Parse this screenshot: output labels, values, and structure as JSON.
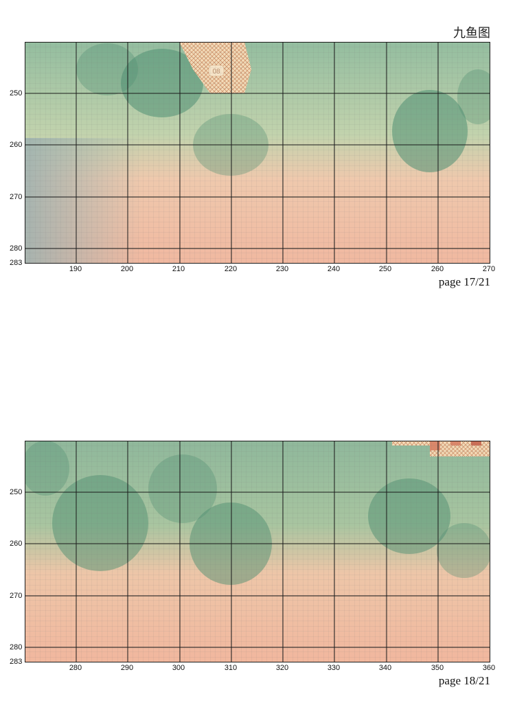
{
  "title": "九鱼图",
  "sheets": [
    {
      "id": "chart1",
      "page_label": "page 17/21",
      "x_ticks": [
        "190",
        "200",
        "210",
        "220",
        "230",
        "240",
        "250",
        "260",
        "270"
      ],
      "y_ticks": [
        "250",
        "260",
        "270",
        "280",
        "283"
      ],
      "marker": "08"
    },
    {
      "id": "chart2",
      "page_label": "page 18/21",
      "x_ticks": [
        "280",
        "290",
        "300",
        "310",
        "320",
        "330",
        "340",
        "350",
        "360"
      ],
      "y_ticks": [
        "250",
        "260",
        "270",
        "280",
        "283"
      ]
    }
  ],
  "colors": {
    "green": "#8fb99c",
    "peach": "#f3c1a6",
    "leaf": "#4f8f72",
    "grid_major": "#1a1a1a"
  }
}
